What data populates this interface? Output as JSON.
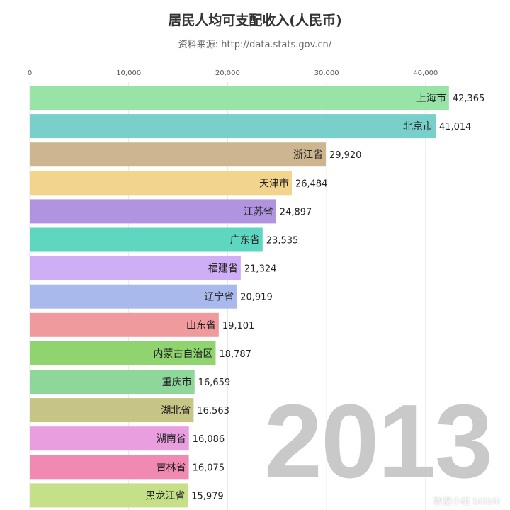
{
  "title": "居民人均可支配收入(人民币)",
  "subtitle": "资料来源: http://data.stats.gov.cn/",
  "year": "2013",
  "watermark": "数据小组 bilibili",
  "chart_data": {
    "type": "bar",
    "orientation": "horizontal",
    "title": "居民人均可支配收入(人民币)",
    "xlim": [
      0,
      45000
    ],
    "x_ticks": [
      0,
      10000,
      20000,
      30000,
      40000
    ],
    "x_tick_labels": [
      "0",
      "10,000",
      "20,000",
      "30,000",
      "40,000"
    ],
    "grid": true,
    "categories": [
      "上海市",
      "北京市",
      "浙江省",
      "天津市",
      "江苏省",
      "广东省",
      "福建省",
      "辽宁省",
      "山东省",
      "内蒙古自治区",
      "重庆市",
      "湖北省",
      "湖南省",
      "吉林省",
      "黑龙江省"
    ],
    "values": [
      42365,
      41014,
      29920,
      26484,
      24897,
      23535,
      21324,
      20919,
      19101,
      18787,
      16659,
      16563,
      16086,
      16075,
      15979
    ],
    "value_labels": [
      "42,365",
      "41,014",
      "29,920",
      "26,484",
      "24,897",
      "23,535",
      "21,324",
      "20,919",
      "19,101",
      "18,787",
      "16,659",
      "16,563",
      "16,086",
      "16,075",
      "15,979"
    ],
    "colors": [
      "#98e3a6",
      "#79cfc9",
      "#cdb58f",
      "#f3d48c",
      "#b194e0",
      "#5ed6c0",
      "#cfaef5",
      "#a9b9ec",
      "#ef9a9d",
      "#8fd46f",
      "#8fd69a",
      "#c5c586",
      "#e99ee0",
      "#f08ab3",
      "#c6e08a"
    ]
  }
}
